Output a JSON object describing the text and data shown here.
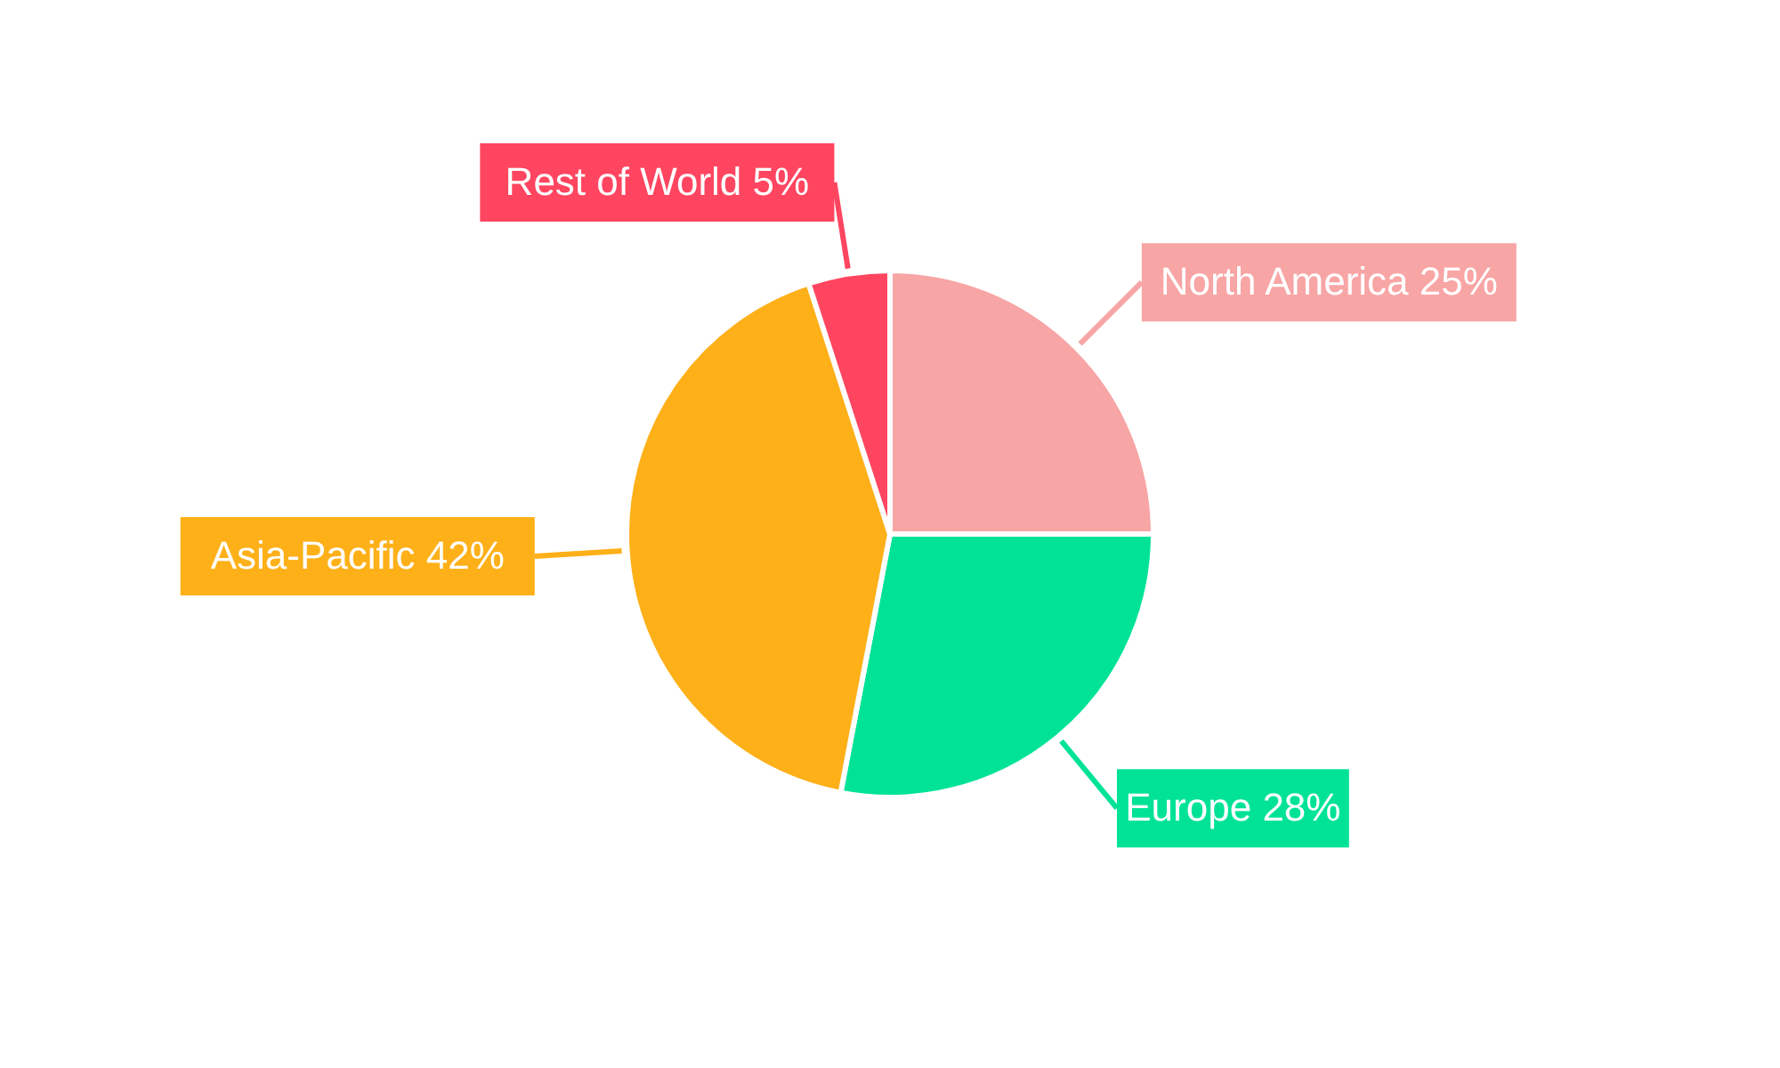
{
  "chart_data": {
    "type": "pie",
    "categories": [
      "North America",
      "Europe",
      "Asia-Pacific",
      "Rest of World"
    ],
    "values": [
      25,
      28,
      42,
      5
    ],
    "value_labels": [
      "25%",
      "28%",
      "42%",
      "5%"
    ],
    "colors": [
      "#f8a5a5",
      "#00e396",
      "#feb019",
      "#ff4560"
    ]
  }
}
